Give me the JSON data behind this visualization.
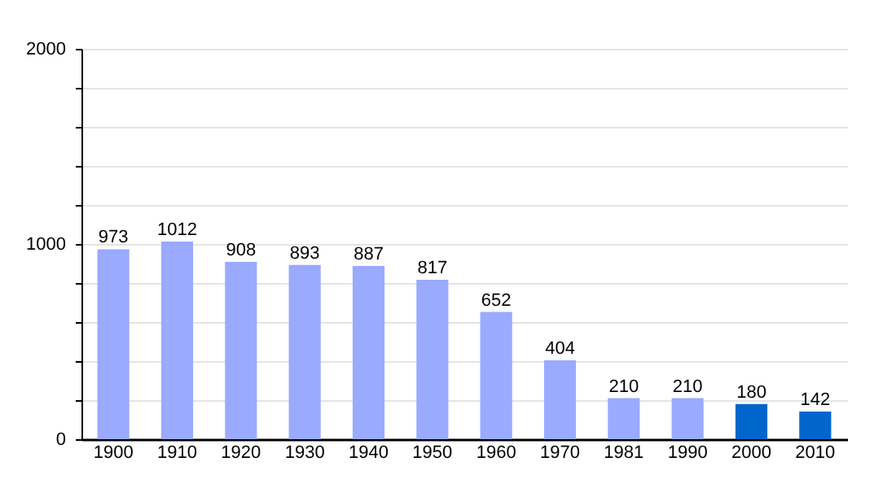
{
  "chart_data": {
    "type": "bar",
    "categories": [
      "1900",
      "1910",
      "1920",
      "1930",
      "1940",
      "1950",
      "1960",
      "1970",
      "1981",
      "1990",
      "2000",
      "2010"
    ],
    "values": [
      973,
      1012,
      908,
      893,
      887,
      817,
      652,
      404,
      210,
      210,
      180,
      142
    ],
    "colors": [
      "#99aaff",
      "#99aaff",
      "#99aaff",
      "#99aaff",
      "#99aaff",
      "#99aaff",
      "#99aaff",
      "#99aaff",
      "#99aaff",
      "#99aaff",
      "#0066cc",
      "#0066cc"
    ],
    "ylim": [
      0,
      2000
    ],
    "yticks": [
      0,
      {
        "value": 200,
        "label": null
      },
      {
        "value": 400,
        "label": null
      },
      {
        "value": 600,
        "label": null
      },
      {
        "value": 800,
        "label": null
      },
      1000,
      {
        "value": 1200,
        "label": null
      },
      {
        "value": 1400,
        "label": null
      },
      {
        "value": 1600,
        "label": null
      },
      {
        "value": 1800,
        "label": null
      },
      2000
    ],
    "grid": true,
    "data_labels": true
  }
}
